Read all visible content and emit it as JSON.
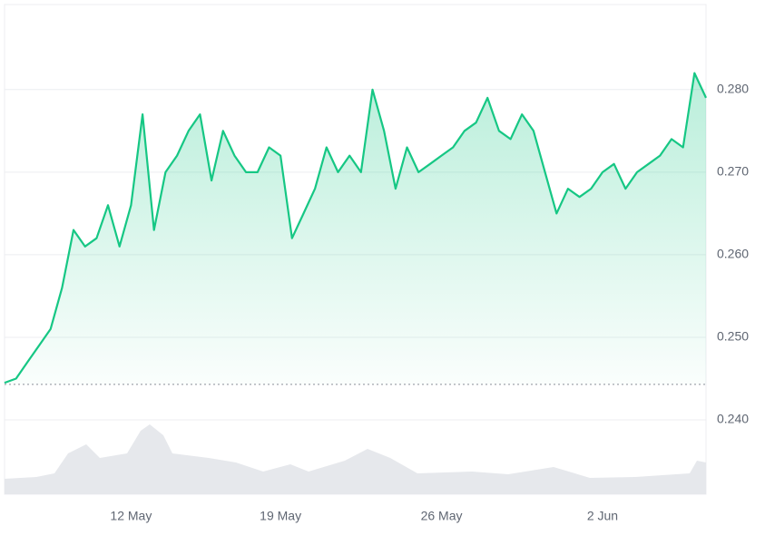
{
  "chart_data": {
    "type": "line",
    "categories": [
      null,
      null,
      null,
      null,
      null,
      null,
      null,
      null,
      null,
      null,
      null,
      "12 May",
      null,
      null,
      null,
      null,
      null,
      null,
      null,
      null,
      null,
      null,
      null,
      null,
      "19 May",
      null,
      null,
      null,
      null,
      null,
      null,
      null,
      null,
      null,
      null,
      null,
      null,
      null,
      "26 May",
      null,
      null,
      null,
      null,
      null,
      null,
      null,
      null,
      null,
      null,
      null,
      null,
      null,
      "2 Jun",
      null,
      null,
      null,
      null,
      null,
      null,
      null,
      null,
      null
    ],
    "series": [
      {
        "color": "#16c784",
        "values": [
          0.2445,
          0.245,
          0.247,
          0.249,
          0.251,
          0.256,
          0.263,
          0.261,
          0.262,
          0.266,
          0.261,
          0.266,
          0.277,
          0.263,
          0.27,
          0.272,
          0.275,
          0.277,
          0.269,
          0.275,
          0.272,
          0.27,
          0.27,
          0.273,
          0.272,
          0.262,
          0.265,
          0.268,
          0.273,
          0.27,
          0.272,
          0.27,
          0.28,
          0.275,
          0.268,
          0.273,
          0.27,
          0.271,
          0.272,
          0.273,
          0.275,
          0.276,
          0.279,
          0.275,
          0.274,
          0.277,
          0.275,
          0.27,
          0.265,
          0.268,
          0.267,
          0.268,
          0.27,
          0.271,
          0.268,
          0.27,
          0.271,
          0.272,
          0.274,
          0.273,
          0.282,
          0.279
        ]
      }
    ],
    "baseline": 0.2443,
    "below_color": "#ea3943",
    "ylim": [
      0.231,
      0.2903
    ],
    "yticks": [
      {
        "value": 0.24,
        "label": "0.240"
      },
      {
        "value": 0.25,
        "label": "0.250"
      },
      {
        "value": 0.26,
        "label": "0.260"
      },
      {
        "value": 0.27,
        "label": "0.270"
      },
      {
        "value": 0.28,
        "label": "0.280"
      }
    ],
    "grid": true
  }
}
